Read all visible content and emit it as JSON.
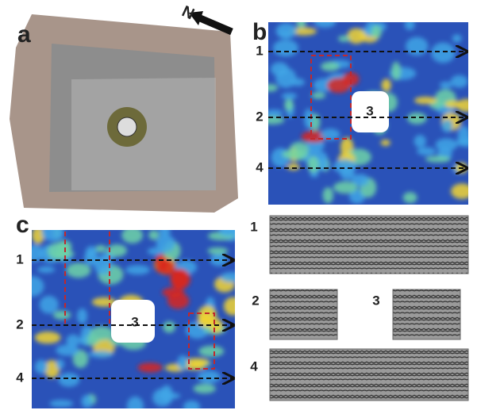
{
  "panels": {
    "a": {
      "label": "a",
      "north": "N"
    },
    "b": {
      "label": "b",
      "profiles": [
        "1",
        "2",
        "4"
      ],
      "hole": "3"
    },
    "c": {
      "label": "c",
      "profiles": [
        "1",
        "2",
        "4"
      ],
      "hole": "3"
    },
    "radargrams": {
      "labels": [
        "1",
        "2",
        "3",
        "4"
      ]
    }
  }
}
